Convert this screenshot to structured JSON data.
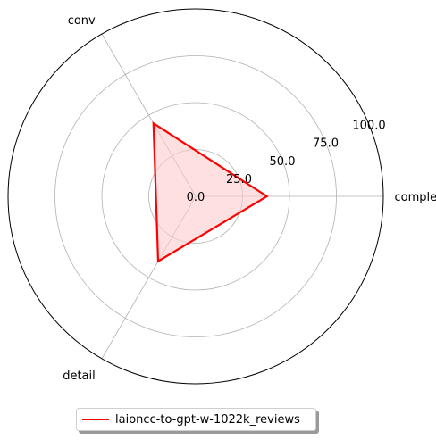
{
  "chart_data": {
    "type": "radar",
    "categories": [
      "complex",
      "conv",
      "detail"
    ],
    "series": [
      {
        "name": "laioncc-to-gpt-w-1022k_reviews",
        "values": [
          38,
          45,
          40
        ],
        "color": "#ff0000",
        "fill": "#ffcccc"
      }
    ],
    "rlim": [
      0,
      100
    ],
    "rtick_labels": [
      "0.0",
      "25.0",
      "50.0",
      "75.0",
      "100.0"
    ],
    "rticks": [
      0,
      25,
      50,
      75,
      100
    ],
    "grid": true,
    "legend_position": "bottom-center"
  }
}
